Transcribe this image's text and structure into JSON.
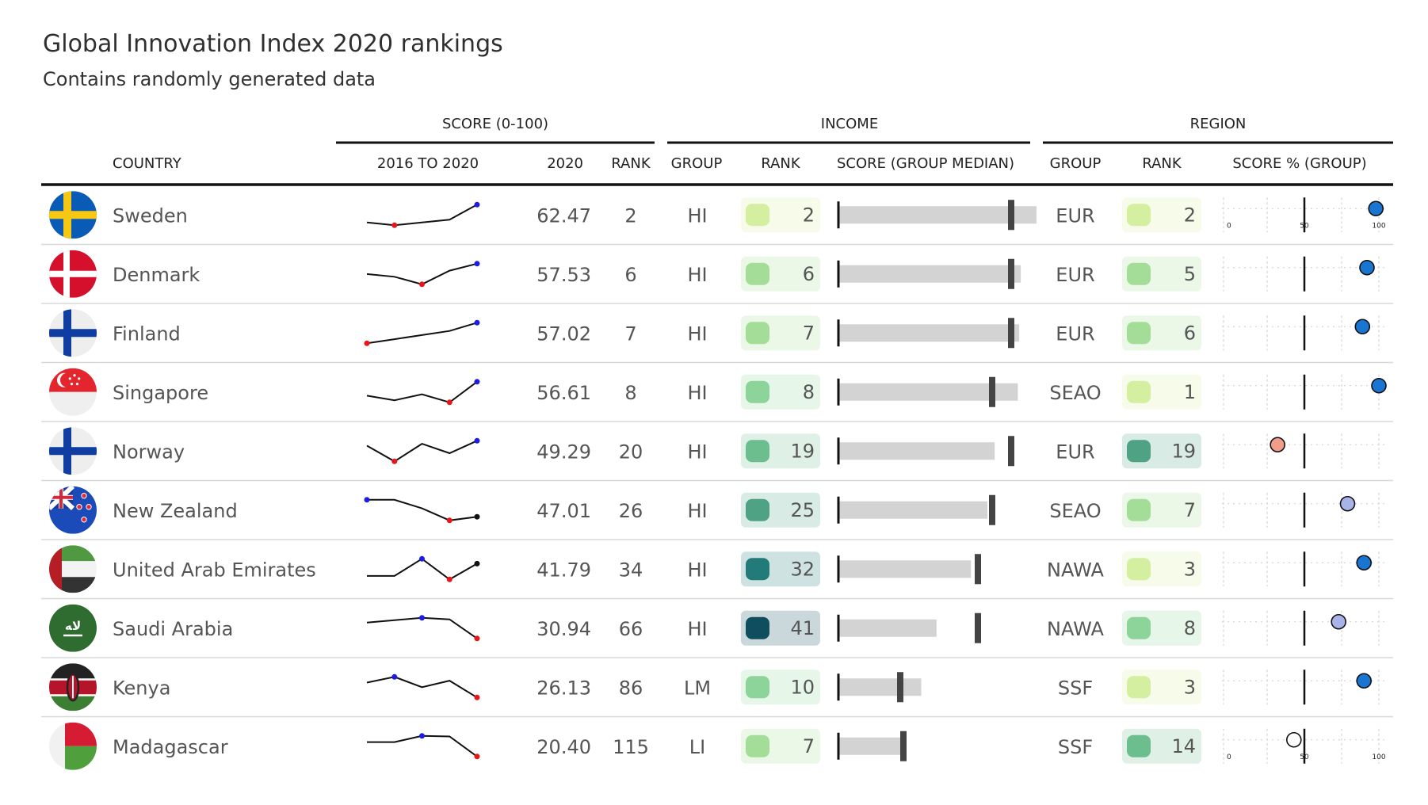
{
  "title": "Global Innovation Index 2020 rankings",
  "subtitle": "Contains randomly generated data",
  "spanners": {
    "score": "SCORE (0-100)",
    "income": "INCOME",
    "region": "REGION"
  },
  "columns": {
    "country": "COUNTRY",
    "trend": "2016 TO 2020",
    "score2020": "2020",
    "rank": "RANK",
    "income_group": "GROUP",
    "income_rank": "RANK",
    "income_score": "SCORE (GROUP MEDIAN)",
    "region_group": "GROUP",
    "region_rank": "RANK",
    "region_pct": "SCORE % (GROUP)"
  },
  "pct_axis_ticks": [
    "0",
    "50",
    "100"
  ],
  "colors": {
    "rank_scale": [
      "#d4efa0",
      "#a4dd98",
      "#8dd49a",
      "#6dbe8f",
      "#4fa283",
      "#237b79",
      "#0e4e5e"
    ],
    "sparkline": "#111111",
    "spark_min": "#e8161b",
    "spark_max": "#1c1ce4",
    "bar": "#d3d3d3",
    "median": "#444444",
    "pct_high": "#1875d1",
    "pct_mid": "#a8b4e8",
    "pct_low": "#f29c8a"
  },
  "chart_data": {
    "type": "table",
    "trend_years": [
      2016,
      2017,
      2018,
      2019,
      2020
    ],
    "rows": [
      {
        "flag": "sweden",
        "country": "Sweden",
        "trend": [
          56,
          55,
          56,
          57,
          62.47
        ],
        "score": "62.47",
        "rank": "2",
        "income_group": "HI",
        "income_rank": "2",
        "income_rank_level": 0,
        "income_score": 62.47,
        "income_median": 54.5,
        "region_group": "EUR",
        "region_rank": "2",
        "region_rank_level": 0,
        "region_pct": 98,
        "region_pct_color": "high"
      },
      {
        "flag": "denmark",
        "country": "Denmark",
        "trend": [
          56,
          55.6,
          54.5,
          56.5,
          57.53
        ],
        "score": "57.53",
        "rank": "6",
        "income_group": "HI",
        "income_rank": "6",
        "income_rank_level": 1,
        "income_score": 57.53,
        "income_median": 54.5,
        "region_group": "EUR",
        "region_rank": "5",
        "region_rank_level": 1,
        "region_pct": 92,
        "region_pct_color": "high"
      },
      {
        "flag": "finland",
        "country": "Finland",
        "trend": [
          52,
          53,
          54,
          55,
          57.02
        ],
        "score": "57.02",
        "rank": "7",
        "income_group": "HI",
        "income_rank": "7",
        "income_rank_level": 1,
        "income_score": 57.02,
        "income_median": 54.5,
        "region_group": "EUR",
        "region_rank": "6",
        "region_rank_level": 1,
        "region_pct": 89,
        "region_pct_color": "high"
      },
      {
        "flag": "singapore",
        "country": "Singapore",
        "trend": [
          54.5,
          53.8,
          54.7,
          53.5,
          56.61
        ],
        "score": "56.61",
        "rank": "8",
        "income_group": "HI",
        "income_rank": "8",
        "income_rank_level": 2,
        "income_score": 56.61,
        "income_median": 48.5,
        "region_group": "SEAO",
        "region_rank": "1",
        "region_rank_level": 0,
        "region_pct": 100,
        "region_pct_color": "high"
      },
      {
        "flag": "norway",
        "country": "Norway",
        "trend": [
          48.5,
          46,
          48.8,
          47.3,
          49.29
        ],
        "score": "49.29",
        "rank": "20",
        "income_group": "HI",
        "income_rank": "19",
        "income_rank_level": 3,
        "income_score": 49.29,
        "income_median": 54.5,
        "region_group": "EUR",
        "region_rank": "19",
        "region_rank_level": 4,
        "region_pct": 32,
        "region_pct_color": "low"
      },
      {
        "flag": "newzealand",
        "country": "New Zealand",
        "trend": [
          48,
          48,
          47.5,
          46.8,
          47.01
        ],
        "score": "47.01",
        "rank": "26",
        "income_group": "HI",
        "income_rank": "25",
        "income_rank_level": 4,
        "income_score": 47.01,
        "income_median": 48.5,
        "region_group": "SEAO",
        "region_rank": "7",
        "region_rank_level": 1,
        "region_pct": 79,
        "region_pct_color": "mid"
      },
      {
        "flag": "uae",
        "country": "United Arab Emirates",
        "trend": [
          40,
          40,
          42.5,
          39.5,
          41.79
        ],
        "score": "41.79",
        "rank": "34",
        "income_group": "HI",
        "income_rank": "32",
        "income_rank_level": 5,
        "income_score": 41.79,
        "income_median": 44,
        "region_group": "NAWA",
        "region_rank": "3",
        "region_rank_level": 0,
        "region_pct": 90,
        "region_pct_color": "high"
      },
      {
        "flag": "saudi",
        "country": "Saudi Arabia",
        "trend": [
          35,
          35.6,
          36.2,
          35.8,
          30.94
        ],
        "score": "30.94",
        "rank": "66",
        "income_group": "HI",
        "income_rank": "41",
        "income_rank_level": 6,
        "income_score": 30.94,
        "income_median": 44,
        "region_group": "NAWA",
        "region_rank": "8",
        "region_rank_level": 2,
        "region_pct": 73,
        "region_pct_color": "mid"
      },
      {
        "flag": "kenya",
        "country": "Kenya",
        "trend": [
          30,
          31.5,
          28.8,
          30.5,
          26.13
        ],
        "score": "26.13",
        "rank": "86",
        "income_group": "LM",
        "income_rank": "10",
        "income_rank_level": 2,
        "income_score": 26.13,
        "income_median": 19.5,
        "region_group": "SSF",
        "region_rank": "3",
        "region_rank_level": 0,
        "region_pct": 90,
        "region_pct_color": "high"
      },
      {
        "flag": "madagascar",
        "country": "Madagascar",
        "trend": [
          25,
          25,
          27,
          26.8,
          20.4
        ],
        "score": "20.40",
        "rank": "115",
        "income_group": "LI",
        "income_rank": "7",
        "income_rank_level": 1,
        "income_score": 20.4,
        "income_median": 20.5,
        "region_group": "SSF",
        "region_rank": "14",
        "region_rank_level": 3,
        "region_pct": 43,
        "region_pct_color": "none"
      }
    ]
  }
}
